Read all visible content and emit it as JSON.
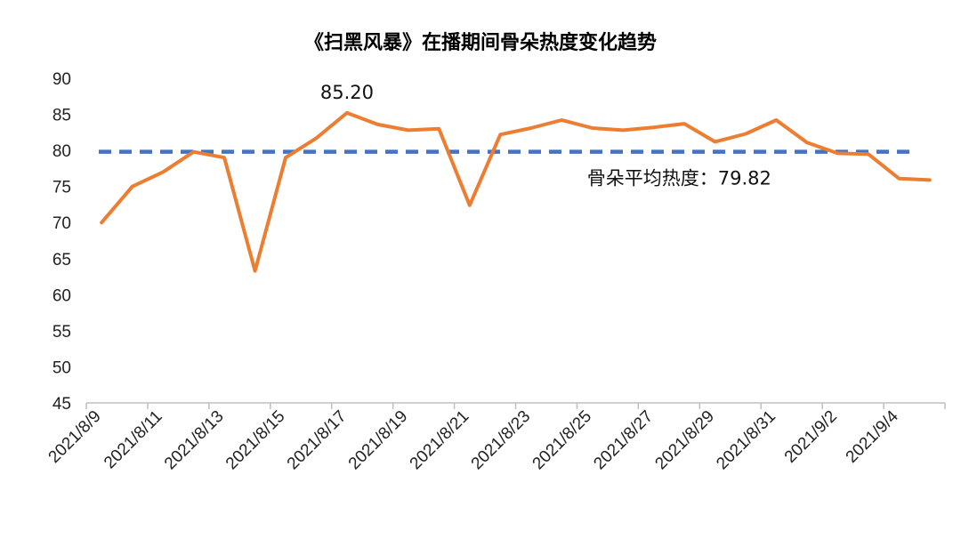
{
  "chart_data": {
    "type": "line",
    "title": "《扫黑风暴》在播期间骨朵热度变化趋势",
    "xlabel": "",
    "ylabel": "",
    "ylim": [
      45,
      90
    ],
    "yticks": [
      45,
      50,
      55,
      60,
      65,
      70,
      75,
      80,
      85,
      90
    ],
    "grid": false,
    "legend": "none",
    "x_tick_labels": [
      "2021/8/9",
      "2021/8/11",
      "2021/8/13",
      "2021/8/15",
      "2021/8/17",
      "2021/8/19",
      "2021/8/21",
      "2021/8/23",
      "2021/8/25",
      "2021/8/27",
      "2021/8/29",
      "2021/8/31",
      "2021/9/2",
      "2021/9/4"
    ],
    "x": [
      "2021/8/9",
      "2021/8/10",
      "2021/8/11",
      "2021/8/12",
      "2021/8/13",
      "2021/8/14",
      "2021/8/15",
      "2021/8/16",
      "2021/8/17",
      "2021/8/18",
      "2021/8/19",
      "2021/8/20",
      "2021/8/21",
      "2021/8/22",
      "2021/8/23",
      "2021/8/24",
      "2021/8/25",
      "2021/8/26",
      "2021/8/27",
      "2021/8/28",
      "2021/8/29",
      "2021/8/30",
      "2021/8/31",
      "2021/9/1",
      "2021/9/2",
      "2021/9/3",
      "2021/9/4",
      "2021/9/5"
    ],
    "series": [
      {
        "color": "#ED7D31",
        "values": [
          70.0,
          75.0,
          77.0,
          79.8,
          79.0,
          63.3,
          79.0,
          81.7,
          85.2,
          83.6,
          82.8,
          83.0,
          72.4,
          82.2,
          83.1,
          84.2,
          83.1,
          82.8,
          83.2,
          83.7,
          81.2,
          82.3,
          84.2,
          81.1,
          79.6,
          79.5,
          76.1,
          75.9
        ]
      }
    ],
    "average_line": {
      "value": 79.82,
      "color": "#4472C4",
      "style": "dashed"
    },
    "annotations": [
      {
        "text": "85.20",
        "x": "2021/8/17",
        "y": 85.2
      },
      {
        "text": "骨朵平均热度：79.82",
        "x": "2021/9/1",
        "y": 79.82
      }
    ]
  }
}
